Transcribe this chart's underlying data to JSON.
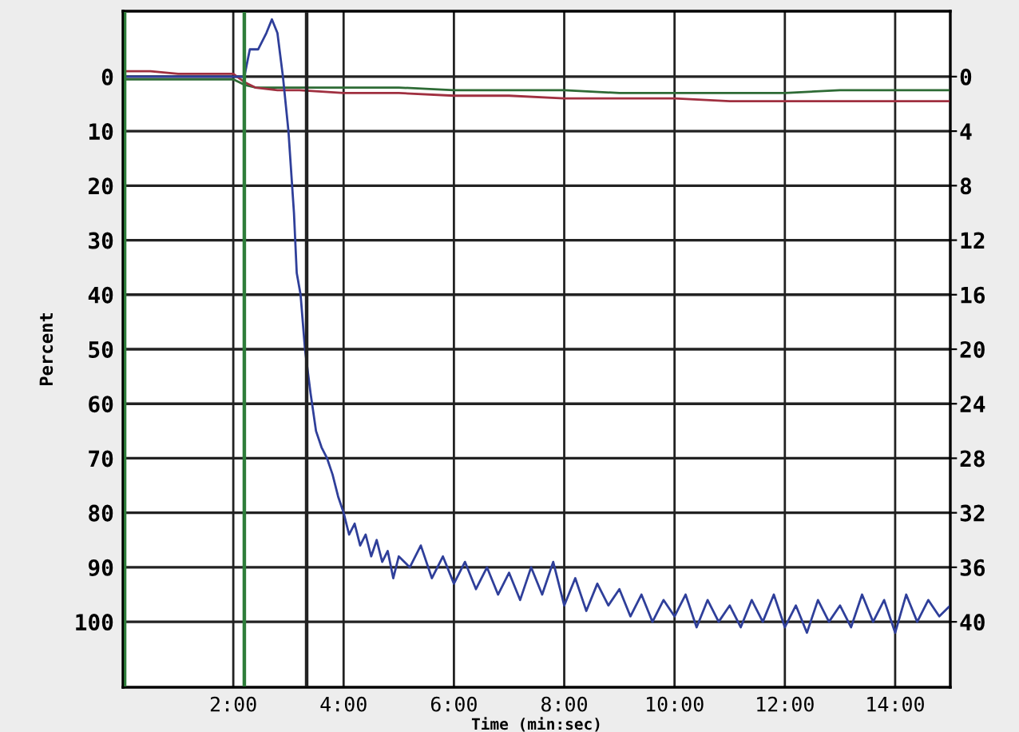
{
  "chart_data": {
    "type": "line",
    "xlabel": "Time (min:sec)",
    "ylabel": "Percent",
    "xlim": [
      0,
      15
    ],
    "ylim": [
      112,
      -12
    ],
    "y2lim": [
      44.8,
      -4.8
    ],
    "xticks": [
      {
        "value": 2,
        "label": "2:00"
      },
      {
        "value": 4,
        "label": "4:00"
      },
      {
        "value": 6,
        "label": "6:00"
      },
      {
        "value": 8,
        "label": "8:00"
      },
      {
        "value": 10,
        "label": "10:00"
      },
      {
        "value": 12,
        "label": "12:00"
      },
      {
        "value": 14,
        "label": "14:00"
      }
    ],
    "yticks": [
      0,
      10,
      20,
      30,
      40,
      50,
      60,
      70,
      80,
      90,
      100
    ],
    "y2ticks": [
      0,
      4,
      8,
      12,
      16,
      20,
      24,
      28,
      32,
      36,
      40
    ],
    "grid": true,
    "line_style": "solid",
    "marker": "none",
    "ref_lines": [
      {
        "axis": "x",
        "value": 0.03,
        "color": "#2e7d3a"
      },
      {
        "axis": "x",
        "value": 2.2,
        "color": "#2e7d3a"
      },
      {
        "axis": "x",
        "value": 3.33,
        "color": "#222222"
      }
    ],
    "series": [
      {
        "color": "#2f3f9a",
        "x": [
          0,
          1,
          2,
          2.2,
          2.3,
          2.45,
          2.6,
          2.7,
          2.8,
          2.9,
          3.0,
          3.1,
          3.15,
          3.22,
          3.3,
          3.4,
          3.5,
          3.6,
          3.7,
          3.8,
          3.9,
          4.0,
          4.1,
          4.2,
          4.3,
          4.4,
          4.5,
          4.6,
          4.7,
          4.8,
          4.9,
          5.0,
          5.2,
          5.4,
          5.6,
          5.8,
          6.0,
          6.2,
          6.4,
          6.6,
          6.8,
          7.0,
          7.2,
          7.4,
          7.6,
          7.8,
          8.0,
          8.2,
          8.4,
          8.6,
          8.8,
          9.0,
          9.2,
          9.4,
          9.6,
          9.8,
          10.0,
          10.2,
          10.4,
          10.6,
          10.8,
          11.0,
          11.2,
          11.4,
          11.6,
          11.8,
          12.0,
          12.2,
          12.4,
          12.6,
          12.8,
          13.0,
          13.2,
          13.4,
          13.6,
          13.8,
          14.0,
          14.2,
          14.4,
          14.6,
          14.8,
          15.0
        ],
        "values": [
          0,
          0,
          0,
          0,
          -5,
          -5,
          -8,
          -10.5,
          -8,
          0,
          10,
          25,
          36,
          40,
          50,
          58,
          65,
          68,
          70,
          73,
          77,
          80,
          84,
          82,
          86,
          84,
          88,
          85,
          89,
          87,
          92,
          88,
          90,
          86,
          92,
          88,
          93,
          89,
          94,
          90,
          95,
          91,
          96,
          90,
          95,
          89,
          97,
          92,
          98,
          93,
          97,
          94,
          99,
          95,
          100,
          96,
          99,
          95,
          101,
          96,
          100,
          97,
          101,
          96,
          100,
          95,
          101,
          97,
          102,
          96,
          100,
          97,
          101,
          95,
          100,
          96,
          102,
          95,
          100,
          96,
          99,
          97
        ]
      },
      {
        "color": "#a03040",
        "x": [
          0,
          0.5,
          1,
          1.5,
          2,
          2.2,
          2.4,
          2.8,
          3.2,
          4,
          5,
          6,
          7,
          8,
          9,
          10,
          11,
          12,
          13,
          14,
          15
        ],
        "values": [
          -1,
          -1,
          -0.5,
          -0.5,
          -0.5,
          1,
          2,
          2.5,
          2.5,
          3,
          3,
          3.5,
          3.5,
          4,
          4,
          4,
          4.5,
          4.5,
          4.5,
          4.5,
          4.5
        ]
      },
      {
        "color": "#2e6b35",
        "x": [
          0,
          0.5,
          1,
          1.5,
          2,
          2.2,
          2.4,
          2.8,
          3.2,
          4,
          5,
          6,
          7,
          8,
          9,
          10,
          11,
          12,
          13,
          14,
          15
        ],
        "values": [
          0.5,
          0.5,
          0.5,
          0.5,
          0.5,
          1.5,
          2,
          2,
          2,
          2,
          2,
          2.5,
          2.5,
          2.5,
          3,
          3,
          3,
          3,
          2.5,
          2.5,
          2.5
        ]
      }
    ]
  }
}
